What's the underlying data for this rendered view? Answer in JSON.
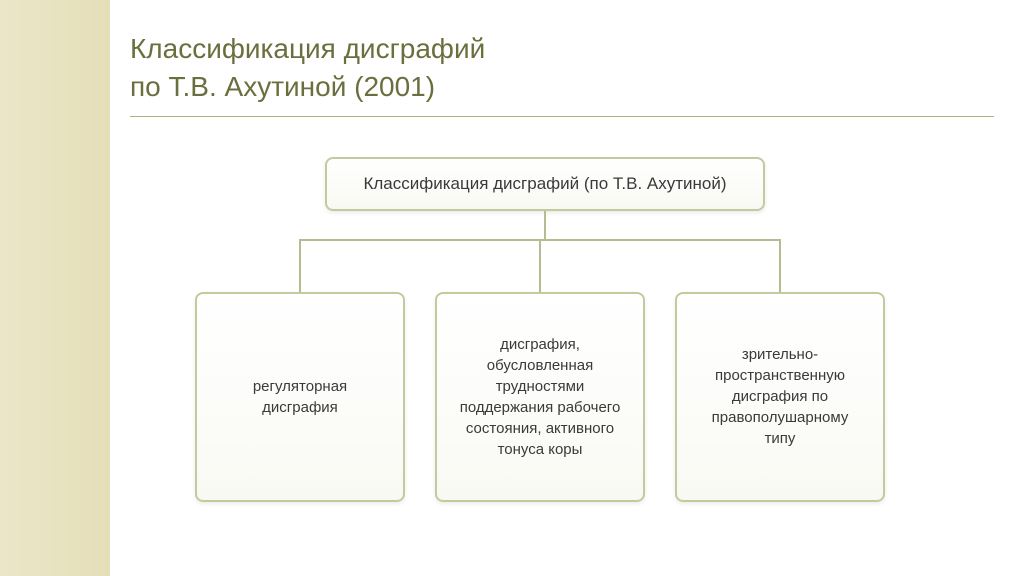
{
  "title_line1": "Классификация дисграфий",
  "title_line2": "по Т.В. Ахутиной (2001)",
  "diagram": {
    "root": {
      "label": "Классификация дисграфий (по Т.В. Ахутиной)"
    },
    "children": [
      {
        "label": "регуляторная дисграфия"
      },
      {
        "label": "дисграфия, обусловленная трудностями поддержания рабочего состояния, активного тонуса коры"
      },
      {
        "label": "зрительно-пространственную дисграфия по правополушарному типу"
      }
    ]
  },
  "style": {
    "sidebar_gradient_start": "#ebe6c9",
    "sidebar_gradient_end": "#e5dfb8",
    "title_color": "#6b6f3e",
    "title_fontsize": 28,
    "title_underline_color": "#aeb283",
    "node_bg_start": "#ffffff",
    "node_bg_end": "#f9f9f4",
    "node_border_color": "#c6c99e",
    "node_border_width": 2,
    "node_border_radius": 8,
    "node_text_color": "#3a3a3a",
    "root_fontsize": 17,
    "child_fontsize": 15,
    "connector_color": "#b7bc90",
    "connector_width": 2,
    "root_width": 440,
    "root_height": 54,
    "child_width": 210,
    "child_height": 210,
    "child_spacing": 240
  }
}
